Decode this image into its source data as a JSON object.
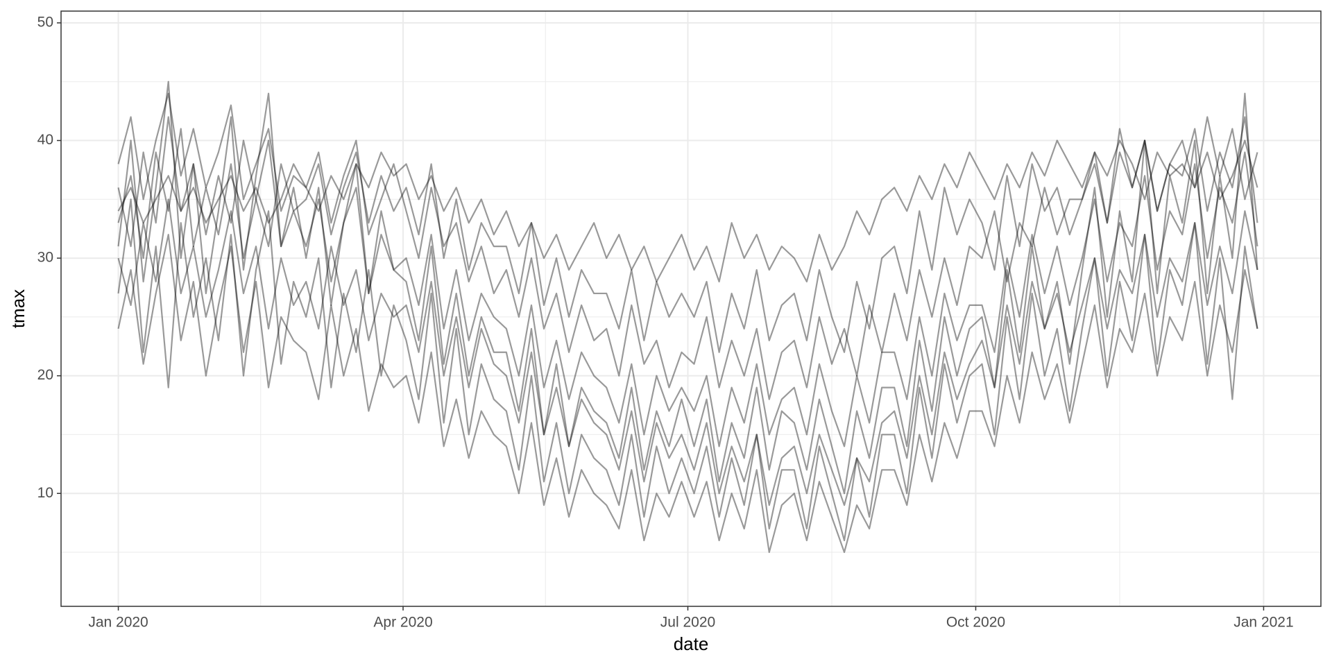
{
  "chart_data": {
    "type": "line",
    "xlabel": "date",
    "ylabel": "tmax",
    "x": [
      0,
      4,
      8,
      12,
      16,
      20,
      24,
      28,
      32,
      36,
      40,
      44,
      48,
      52,
      56,
      60,
      64,
      68,
      72,
      76,
      80,
      84,
      88,
      92,
      96,
      100,
      104,
      108,
      112,
      116,
      120,
      124,
      128,
      132,
      136,
      140,
      144,
      148,
      152,
      156,
      160,
      164,
      168,
      172,
      176,
      180,
      184,
      188,
      192,
      196,
      200,
      204,
      208,
      212,
      216,
      220,
      224,
      228,
      232,
      236,
      240,
      244,
      248,
      252,
      256,
      260,
      264,
      268,
      272,
      276,
      280,
      284,
      288,
      292,
      296,
      300,
      304,
      308,
      312,
      316,
      320,
      324,
      328,
      332,
      336,
      340,
      344,
      348,
      352,
      356,
      360,
      364
    ],
    "xlim": [
      -18.3,
      384.3
    ],
    "xticks": [
      {
        "value": 0,
        "label": "Jan 2020"
      },
      {
        "value": 91,
        "label": "Apr 2020"
      },
      {
        "value": 182,
        "label": "Jul 2020"
      },
      {
        "value": 274,
        "label": "Oct 2020"
      },
      {
        "value": 366,
        "label": "Jan 2021"
      }
    ],
    "ylim": [
      0.4,
      51.0
    ],
    "yticks": [
      10,
      20,
      30,
      40,
      50
    ],
    "grid": true,
    "color": "#000000",
    "alpha": 0.4,
    "series": [
      {
        "values": [
          38,
          42,
          35,
          40,
          44,
          37,
          41,
          36,
          39,
          43,
          35,
          38,
          41,
          34,
          37,
          36,
          39,
          33,
          37,
          40,
          32,
          35,
          38,
          34,
          30,
          36,
          31,
          33,
          28,
          31,
          27,
          29,
          25,
          30,
          24,
          27,
          22,
          26,
          23,
          24,
          20,
          26,
          21,
          23,
          19,
          22,
          21,
          25,
          19,
          23,
          20,
          24,
          18,
          22,
          23,
          19,
          25,
          21,
          24,
          20,
          26,
          22,
          27,
          23,
          29,
          25,
          30,
          26,
          31,
          30,
          34,
          28,
          33,
          31,
          36,
          32,
          35,
          35,
          38,
          33,
          39,
          36,
          40,
          34,
          38,
          40,
          36,
          42,
          37,
          41,
          35,
          39
        ]
      },
      {
        "values": [
          34,
          36,
          33,
          35,
          37,
          34,
          36,
          33,
          35,
          37,
          34,
          36,
          33,
          35,
          38,
          36,
          34,
          37,
          35,
          38,
          36,
          39,
          37,
          38,
          35,
          37,
          34,
          36,
          33,
          35,
          32,
          34,
          31,
          33,
          30,
          32,
          29,
          31,
          33,
          30,
          32,
          29,
          31,
          28,
          30,
          32,
          29,
          31,
          28,
          33,
          30,
          32,
          29,
          31,
          30,
          28,
          32,
          29,
          31,
          34,
          32,
          35,
          36,
          34,
          37,
          35,
          38,
          36,
          39,
          37,
          35,
          38,
          36,
          39,
          37,
          40,
          38,
          36,
          39,
          37,
          40,
          38,
          35,
          39,
          37,
          38,
          36,
          39,
          35,
          37,
          40,
          36
        ]
      },
      {
        "values": [
          30,
          26,
          33,
          28,
          35,
          27,
          31,
          25,
          29,
          34,
          27,
          31,
          24,
          30,
          26,
          28,
          24,
          31,
          26,
          29,
          23,
          27,
          25,
          26,
          22,
          28,
          20,
          25,
          19,
          24,
          21,
          20,
          16,
          22,
          15,
          19,
          14,
          18,
          16,
          15,
          12,
          17,
          11,
          16,
          13,
          15,
          12,
          16,
          10,
          14,
          11,
          15,
          9,
          13,
          14,
          10,
          15,
          12,
          9,
          13,
          11,
          16,
          17,
          13,
          20,
          15,
          22,
          18,
          21,
          23,
          19,
          26,
          21,
          28,
          24,
          27,
          22,
          26,
          30,
          24,
          29,
          27,
          32,
          25,
          30,
          28,
          33,
          26,
          31,
          27,
          34,
          29
        ]
      },
      {
        "values": [
          24,
          29,
          21,
          27,
          32,
          23,
          28,
          20,
          26,
          31,
          22,
          28,
          19,
          25,
          23,
          22,
          18,
          26,
          20,
          24,
          17,
          21,
          19,
          20,
          16,
          22,
          14,
          18,
          13,
          17,
          15,
          14,
          10,
          16,
          9,
          13,
          8,
          12,
          10,
          9,
          7,
          12,
          6,
          10,
          8,
          11,
          8,
          11,
          6,
          10,
          7,
          12,
          5,
          9,
          10,
          6,
          11,
          8,
          5,
          9,
          7,
          12,
          12,
          9,
          15,
          11,
          16,
          13,
          17,
          17,
          14,
          20,
          16,
          22,
          18,
          21,
          16,
          21,
          26,
          19,
          24,
          22,
          27,
          20,
          25,
          23,
          28,
          20,
          26,
          22,
          29,
          24
        ]
      },
      {
        "values": [
          33,
          37,
          30,
          39,
          34,
          41,
          31,
          36,
          32,
          38,
          30,
          35,
          40,
          31,
          34,
          31,
          35,
          28,
          33,
          36,
          27,
          32,
          29,
          30,
          26,
          32,
          24,
          29,
          23,
          27,
          25,
          24,
          20,
          26,
          19,
          23,
          18,
          22,
          20,
          19,
          16,
          21,
          15,
          20,
          17,
          19,
          17,
          20,
          14,
          19,
          16,
          21,
          15,
          18,
          19,
          15,
          21,
          17,
          14,
          20,
          16,
          22,
          22,
          18,
          25,
          20,
          27,
          23,
          26,
          26,
          22,
          30,
          25,
          32,
          27,
          31,
          26,
          30,
          35,
          28,
          33,
          31,
          37,
          29,
          34,
          32,
          38,
          30,
          36,
          33,
          39,
          31
        ]
      },
      {
        "values": [
          36,
          31,
          39,
          33,
          42,
          34,
          38,
          32,
          37,
          33,
          40,
          35,
          31,
          38,
          34,
          35,
          38,
          32,
          36,
          39,
          33,
          37,
          34,
          36,
          32,
          38,
          30,
          35,
          29,
          33,
          31,
          31,
          27,
          33,
          26,
          30,
          25,
          29,
          27,
          27,
          24,
          29,
          23,
          28,
          25,
          27,
          25,
          28,
          22,
          27,
          24,
          29,
          23,
          26,
          27,
          23,
          29,
          25,
          22,
          28,
          24,
          30,
          31,
          27,
          34,
          29,
          36,
          32,
          35,
          33,
          29,
          37,
          31,
          38,
          34,
          36,
          32,
          35,
          39,
          33,
          41,
          36,
          40,
          34,
          38,
          37,
          41,
          34,
          39,
          36,
          42,
          33
        ]
      },
      {
        "values": [
          27,
          35,
          22,
          31,
          19,
          33,
          25,
          30,
          23,
          32,
          20,
          29,
          34,
          21,
          28,
          25,
          30,
          19,
          27,
          22,
          29,
          20,
          26,
          23,
          18,
          27,
          16,
          24,
          15,
          21,
          18,
          17,
          12,
          20,
          11,
          16,
          10,
          15,
          13,
          12,
          9,
          15,
          8,
          14,
          10,
          13,
          10,
          14,
          8,
          13,
          9,
          15,
          7,
          12,
          12,
          7,
          14,
          10,
          6,
          13,
          8,
          15,
          15,
          10,
          19,
          13,
          21,
          16,
          20,
          21,
          15,
          25,
          18,
          27,
          20,
          24,
          17,
          24,
          30,
          20,
          28,
          23,
          32,
          21,
          29,
          26,
          33,
          21,
          30,
          18,
          31,
          24
        ]
      },
      {
        "values": [
          31,
          40,
          28,
          36,
          45,
          30,
          38,
          27,
          34,
          42,
          29,
          37,
          44,
          31,
          36,
          30,
          36,
          26,
          33,
          38,
          27,
          34,
          29,
          28,
          23,
          31,
          21,
          27,
          20,
          25,
          22,
          22,
          17,
          24,
          15,
          21,
          14,
          19,
          17,
          16,
          13,
          19,
          12,
          17,
          14,
          18,
          14,
          18,
          11,
          16,
          13,
          19,
          12,
          17,
          16,
          12,
          18,
          14,
          10,
          17,
          13,
          19,
          19,
          14,
          23,
          17,
          25,
          20,
          24,
          25,
          19,
          29,
          22,
          31,
          24,
          28,
          21,
          29,
          36,
          25,
          34,
          28,
          40,
          27,
          37,
          33,
          40,
          27,
          37,
          30,
          44,
          29
        ]
      }
    ]
  }
}
